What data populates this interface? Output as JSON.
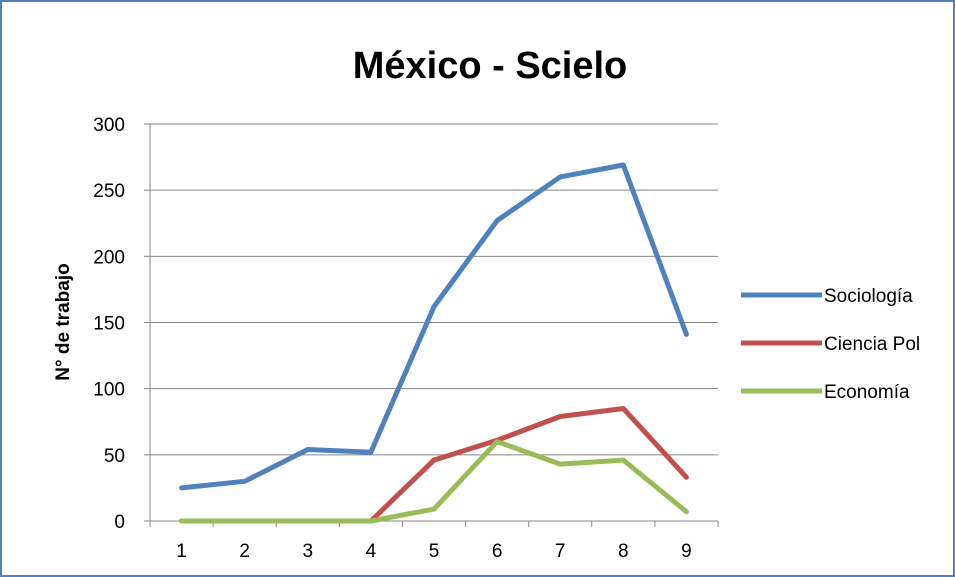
{
  "chart_data": {
    "type": "line",
    "title": "México - Scielo",
    "xlabel": "",
    "ylabel": "N° de trabajo",
    "x": [
      1,
      2,
      3,
      4,
      5,
      6,
      7,
      8,
      9
    ],
    "ylim": [
      0,
      300
    ],
    "yticks": [
      0,
      50,
      100,
      150,
      200,
      250,
      300
    ],
    "grid": true,
    "legend_position": "right",
    "series": [
      {
        "name": "Sociología",
        "color": "#4f81bd",
        "values": [
          25,
          30,
          54,
          52,
          162,
          227,
          260,
          269,
          141
        ]
      },
      {
        "name": "Ciencia Pol",
        "color": "#c0504d",
        "values": [
          0,
          0,
          0,
          0,
          46,
          61,
          79,
          85,
          33
        ]
      },
      {
        "name": "Economía",
        "color": "#9bbb59",
        "values": [
          0,
          0,
          0,
          0,
          9,
          60,
          43,
          46,
          7
        ]
      }
    ]
  }
}
